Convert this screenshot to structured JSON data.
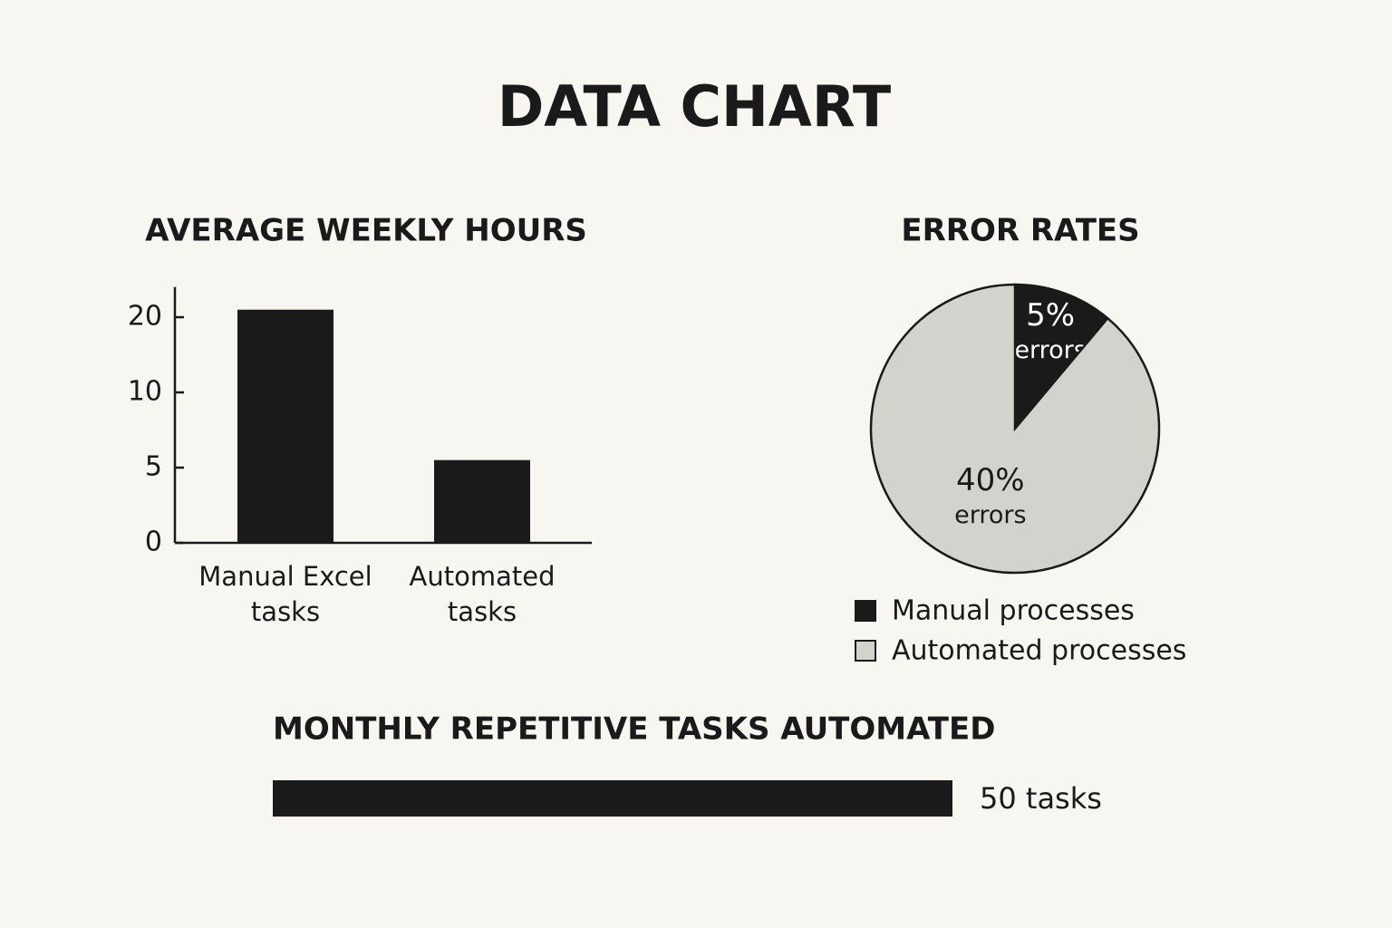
{
  "title": "DATA CHART",
  "chart_data": [
    {
      "type": "bar",
      "title": "AVERAGE WEEKLY HOURS",
      "categories": [
        "Manual Excel tasks",
        "Automated tasks"
      ],
      "values": [
        21,
        5.5
      ],
      "color": "#1a1a1a",
      "ylim": [
        0,
        24
      ],
      "yticks": [
        0,
        5,
        10,
        20
      ],
      "yscale": "tick-indexed"
    },
    {
      "type": "pie",
      "title": "ERROR RATES",
      "categories": [
        "Manual processes",
        "Automated processes"
      ],
      "values": [
        5,
        40
      ],
      "value_labels": [
        "5%",
        "40%"
      ],
      "value_note": "errors",
      "colors": [
        "#1a1a1a",
        "#d4d2cd"
      ],
      "legend": "bottom"
    },
    {
      "type": "bar",
      "orientation": "horizontal",
      "title": "MONTHLY REPETITIVE TASKS AUTOMATED",
      "values": [
        50
      ],
      "value_labels": [
        "50 tasks"
      ],
      "color": "#1a1a1a"
    }
  ]
}
